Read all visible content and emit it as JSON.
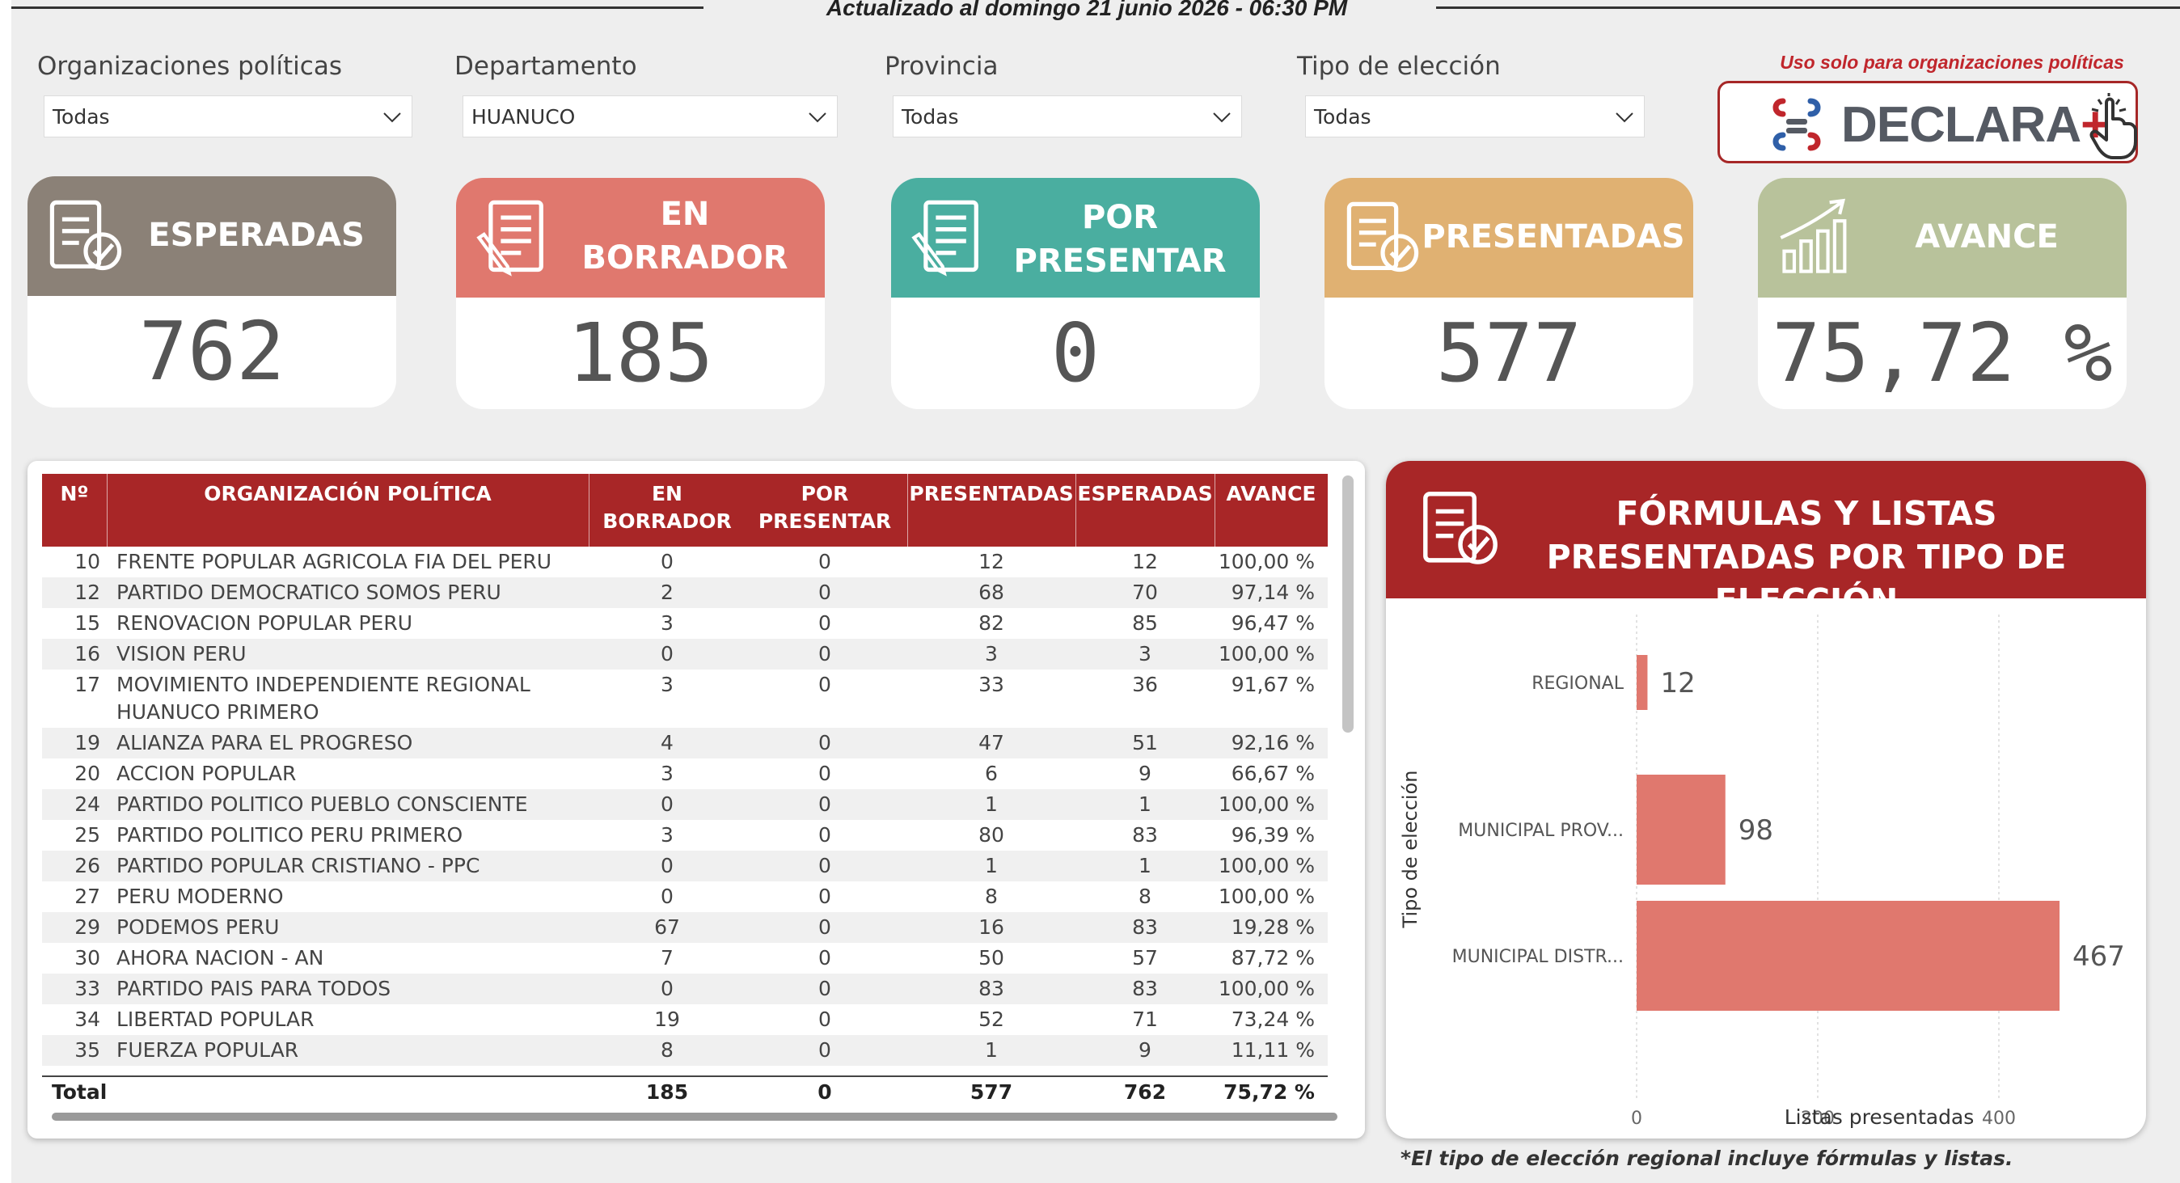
{
  "header": {
    "updated_text": "Actualizado al domingo 21 junio 2026 - 06:30 PM"
  },
  "filters": [
    {
      "label": "Organizaciones políticas",
      "value": "Todas"
    },
    {
      "label": "Departamento",
      "value": "HUANUCO"
    },
    {
      "label": "Provincia",
      "value": "Todas"
    },
    {
      "label": "Tipo de elección",
      "value": "Todas"
    }
  ],
  "declara": {
    "note": "Uso solo para organizaciones políticas",
    "label": "DECLARA",
    "plus": "+"
  },
  "kpis": [
    {
      "title": [
        "ESPERADAS"
      ],
      "value": "762",
      "color": "#8b8177",
      "icon": "document-check-icon"
    },
    {
      "title": [
        "EN",
        "BORRADOR"
      ],
      "value": "185",
      "color": "#e0786e",
      "icon": "document-edit-icon"
    },
    {
      "title": [
        "POR",
        "PRESENTAR"
      ],
      "value": "0",
      "color": "#4aaea0",
      "icon": "document-edit-icon"
    },
    {
      "title": [
        "PRESENTADAS"
      ],
      "value": "577",
      "color": "#e0b172",
      "icon": "document-check-icon"
    },
    {
      "title": [
        "AVANCE"
      ],
      "value": "75,72 %",
      "color": "#b8c29b",
      "icon": "growth-chart-icon"
    }
  ],
  "table": {
    "headers": {
      "n": "Nº",
      "org": "ORGANIZACIÓN POLÍTICA",
      "borrador": [
        "EN",
        "BORRADOR"
      ],
      "por_presentar": [
        "POR",
        "PRESENTAR"
      ],
      "presentadas": "PRESENTADAS",
      "esperadas": "ESPERADAS",
      "avance": "AVANCE"
    },
    "rows": [
      {
        "n": "10",
        "org": [
          "FRENTE POPULAR AGRICOLA FIA DEL PERU"
        ],
        "borrador": "0",
        "por_presentar": "0",
        "presentadas": "12",
        "esperadas": "12",
        "avance": "100,00 %"
      },
      {
        "n": "12",
        "org": [
          "PARTIDO DEMOCRATICO SOMOS PERU"
        ],
        "borrador": "2",
        "por_presentar": "0",
        "presentadas": "68",
        "esperadas": "70",
        "avance": "97,14 %"
      },
      {
        "n": "15",
        "org": [
          "RENOVACION POPULAR PERU"
        ],
        "borrador": "3",
        "por_presentar": "0",
        "presentadas": "82",
        "esperadas": "85",
        "avance": "96,47 %"
      },
      {
        "n": "16",
        "org": [
          "VISION PERU"
        ],
        "borrador": "0",
        "por_presentar": "0",
        "presentadas": "3",
        "esperadas": "3",
        "avance": "100,00 %"
      },
      {
        "n": "17",
        "org": [
          "MOVIMIENTO INDEPENDIENTE REGIONAL",
          "HUANUCO PRIMERO"
        ],
        "borrador": "3",
        "por_presentar": "0",
        "presentadas": "33",
        "esperadas": "36",
        "avance": "91,67 %"
      },
      {
        "n": "19",
        "org": [
          "ALIANZA PARA EL PROGRESO"
        ],
        "borrador": "4",
        "por_presentar": "0",
        "presentadas": "47",
        "esperadas": "51",
        "avance": "92,16 %"
      },
      {
        "n": "20",
        "org": [
          "ACCION POPULAR"
        ],
        "borrador": "3",
        "por_presentar": "0",
        "presentadas": "6",
        "esperadas": "9",
        "avance": "66,67 %"
      },
      {
        "n": "24",
        "org": [
          "PARTIDO POLITICO PUEBLO CONSCIENTE"
        ],
        "borrador": "0",
        "por_presentar": "0",
        "presentadas": "1",
        "esperadas": "1",
        "avance": "100,00 %"
      },
      {
        "n": "25",
        "org": [
          "PARTIDO POLITICO PERU PRIMERO"
        ],
        "borrador": "3",
        "por_presentar": "0",
        "presentadas": "80",
        "esperadas": "83",
        "avance": "96,39 %"
      },
      {
        "n": "26",
        "org": [
          "PARTIDO POPULAR CRISTIANO - PPC"
        ],
        "borrador": "0",
        "por_presentar": "0",
        "presentadas": "1",
        "esperadas": "1",
        "avance": "100,00 %"
      },
      {
        "n": "27",
        "org": [
          "PERU MODERNO"
        ],
        "borrador": "0",
        "por_presentar": "0",
        "presentadas": "8",
        "esperadas": "8",
        "avance": "100,00 %"
      },
      {
        "n": "29",
        "org": [
          "PODEMOS PERU"
        ],
        "borrador": "67",
        "por_presentar": "0",
        "presentadas": "16",
        "esperadas": "83",
        "avance": "19,28 %"
      },
      {
        "n": "30",
        "org": [
          "AHORA NACION - AN"
        ],
        "borrador": "7",
        "por_presentar": "0",
        "presentadas": "50",
        "esperadas": "57",
        "avance": "87,72 %"
      },
      {
        "n": "33",
        "org": [
          "PARTIDO PAIS PARA TODOS"
        ],
        "borrador": "0",
        "por_presentar": "0",
        "presentadas": "83",
        "esperadas": "83",
        "avance": "100,00 %"
      },
      {
        "n": "34",
        "org": [
          "LIBERTAD POPULAR"
        ],
        "borrador": "19",
        "por_presentar": "0",
        "presentadas": "52",
        "esperadas": "71",
        "avance": "73,24 %"
      },
      {
        "n": "35",
        "org": [
          "FUERZA POPULAR"
        ],
        "borrador": "8",
        "por_presentar": "0",
        "presentadas": "1",
        "esperadas": "9",
        "avance": "11,11 %"
      }
    ],
    "total": {
      "label": "Total",
      "borrador": "185",
      "por_presentar": "0",
      "presentadas": "577",
      "esperadas": "762",
      "avance": "75,72 %"
    }
  },
  "chart_panel": {
    "title": [
      "FÓRMULAS Y LISTAS",
      "PRESENTADAS POR TIPO DE ELECCIÓN"
    ],
    "note": "*El tipo de elección regional incluye fórmulas y listas."
  },
  "chart_data": {
    "type": "bar",
    "orientation": "horizontal",
    "categories": [
      "REGIONAL",
      "MUNICIPAL PROV...",
      "MUNICIPAL DISTR..."
    ],
    "values": [
      12,
      98,
      467
    ],
    "data_labels": [
      "12",
      "98",
      "467"
    ],
    "xlabel": "Listas presentadas",
    "ylabel": "Tipo de elección",
    "xlim": [
      0,
      500
    ],
    "xticks": [
      0,
      200,
      400
    ],
    "grid": true,
    "bar_color": "#e0786e"
  }
}
